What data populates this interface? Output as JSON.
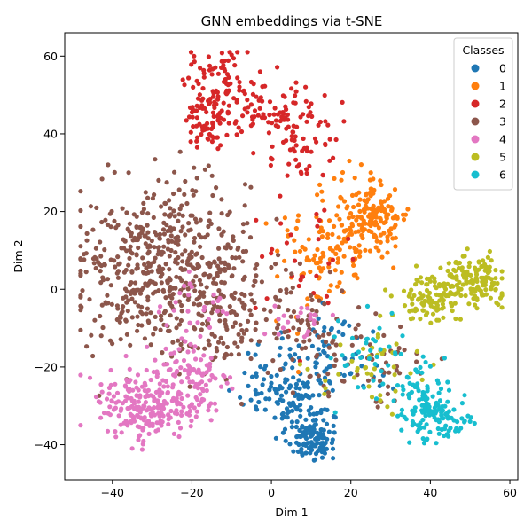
{
  "chart_data": {
    "type": "scatter",
    "title": "GNN embeddings via t-SNE",
    "xlabel": "Dim 1",
    "ylabel": "Dim 2",
    "xlim": [
      -52,
      62
    ],
    "ylim": [
      -49,
      66
    ],
    "xticks": [
      -40,
      -20,
      0,
      20,
      40,
      60
    ],
    "yticks": [
      -40,
      -20,
      0,
      20,
      40,
      60
    ],
    "grid": false,
    "legend": {
      "title": "Classes",
      "placement": "top-right"
    },
    "series": [
      {
        "name": "0",
        "color": "#1f77b4",
        "clusters": [
          {
            "center": [
              10,
              -38
            ],
            "spread": [
              3,
              3
            ],
            "count": 110
          },
          {
            "center": [
              7,
              -28
            ],
            "spread": [
              5,
              4
            ],
            "count": 90
          },
          {
            "center": [
              14,
              -17
            ],
            "spread": [
              8,
              5
            ],
            "count": 70
          },
          {
            "center": [
              -1,
              -25
            ],
            "spread": [
              4,
              3
            ],
            "count": 30
          }
        ]
      },
      {
        "name": "1",
        "color": "#ff7f0e",
        "clusters": [
          {
            "center": [
              25,
              19
            ],
            "spread": [
              5,
              5
            ],
            "count": 170
          },
          {
            "center": [
              16,
              10
            ],
            "spread": [
              5,
              5
            ],
            "count": 70
          },
          {
            "center": [
              8,
              5
            ],
            "spread": [
              6,
              8
            ],
            "count": 30
          }
        ]
      },
      {
        "name": "2",
        "color": "#d62728",
        "clusters": [
          {
            "center": [
              -13,
              52
            ],
            "spread": [
              5,
              5
            ],
            "count": 90
          },
          {
            "center": [
              -2,
              47
            ],
            "spread": [
              7,
              4
            ],
            "count": 80
          },
          {
            "center": [
              -17,
              42
            ],
            "spread": [
              3,
              3
            ],
            "count": 40
          },
          {
            "center": [
              7,
              38
            ],
            "spread": [
              5,
              5
            ],
            "count": 60
          },
          {
            "center": [
              8,
              5
            ],
            "spread": [
              8,
              10
            ],
            "count": 30
          }
        ]
      },
      {
        "name": "3",
        "color": "#8c564b",
        "clusters": [
          {
            "center": [
              -27,
              10
            ],
            "spread": [
              11,
              9
            ],
            "count": 380
          },
          {
            "center": [
              -33,
              -5
            ],
            "spread": [
              7,
              6
            ],
            "count": 90
          },
          {
            "center": [
              -12,
              -5
            ],
            "spread": [
              8,
              8
            ],
            "count": 150
          },
          {
            "center": [
              8,
              -12
            ],
            "spread": [
              8,
              6
            ],
            "count": 80
          },
          {
            "center": [
              28,
              -20
            ],
            "spread": [
              6,
              5
            ],
            "count": 40
          }
        ]
      },
      {
        "name": "4",
        "color": "#e377c2",
        "clusters": [
          {
            "center": [
              -33,
              -30
            ],
            "spread": [
              6,
              5
            ],
            "count": 200
          },
          {
            "center": [
              -20,
              -25
            ],
            "spread": [
              5,
              6
            ],
            "count": 110
          },
          {
            "center": [
              -20,
              -6
            ],
            "spread": [
              6,
              5
            ],
            "count": 30
          },
          {
            "center": [
              5,
              -8
            ],
            "spread": [
              4,
              3
            ],
            "count": 20
          }
        ]
      },
      {
        "name": "5",
        "color": "#bcbd22",
        "clusters": [
          {
            "center": [
              50,
              2
            ],
            "spread": [
              5,
              3
            ],
            "count": 150
          },
          {
            "center": [
              40,
              -3
            ],
            "spread": [
              5,
              3
            ],
            "count": 90
          },
          {
            "center": [
              27,
              -20
            ],
            "spread": [
              8,
              6
            ],
            "count": 40
          }
        ]
      },
      {
        "name": "6",
        "color": "#17becf",
        "clusters": [
          {
            "center": [
              42,
              -33
            ],
            "spread": [
              4,
              3
            ],
            "count": 110
          },
          {
            "center": [
              36,
              -26
            ],
            "spread": [
              4,
              3
            ],
            "count": 40
          },
          {
            "center": [
              24,
              -17
            ],
            "spread": [
              6,
              6
            ],
            "count": 40
          }
        ]
      }
    ]
  }
}
